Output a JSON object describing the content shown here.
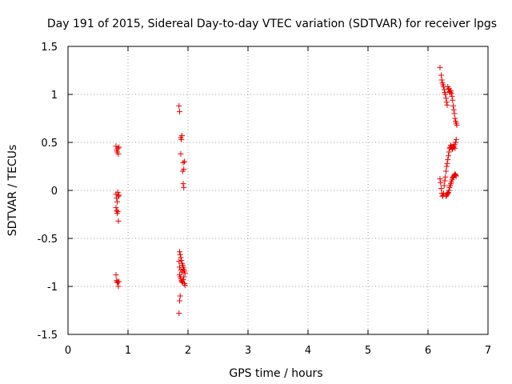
{
  "chart_data": {
    "type": "scatter",
    "title": "Day 191 of 2015, Sidereal Day-to-day VTEC variation (SDTVAR) for receiver lpgs",
    "xlabel": "GPS time / hours",
    "ylabel": "SDTVAR / TECUs",
    "xlim": [
      0,
      7
    ],
    "ylim": [
      -1.5,
      1.5
    ],
    "xticks": [
      0,
      1,
      2,
      3,
      4,
      5,
      6,
      7
    ],
    "yticks": [
      -1.5,
      -1,
      -0.5,
      0,
      0.5,
      1,
      1.5
    ],
    "xtick_labels": [
      "0",
      "1",
      "2",
      "3",
      "4",
      "5",
      "6",
      "7"
    ],
    "ytick_labels": [
      "-1.5",
      "-1",
      "-0.5",
      "0",
      "0.5",
      "1",
      "1.5"
    ],
    "grid": true,
    "marker": "+",
    "color": "#ee0000",
    "series": [
      {
        "name": "SDTVAR",
        "points": [
          [
            0.8,
            0.46
          ],
          [
            0.81,
            0.42
          ],
          [
            0.82,
            0.4
          ],
          [
            0.83,
            0.44
          ],
          [
            0.84,
            0.38
          ],
          [
            0.85,
            0.45
          ],
          [
            0.8,
            -0.04
          ],
          [
            0.81,
            -0.08
          ],
          [
            0.82,
            -0.12
          ],
          [
            0.83,
            -0.02
          ],
          [
            0.84,
            -0.06
          ],
          [
            0.85,
            -0.05
          ],
          [
            0.8,
            -0.18
          ],
          [
            0.81,
            -0.21
          ],
          [
            0.82,
            -0.24
          ],
          [
            0.83,
            -0.22
          ],
          [
            0.84,
            -0.32
          ],
          [
            0.8,
            -0.88
          ],
          [
            0.81,
            -0.94
          ],
          [
            0.82,
            -0.96
          ],
          [
            0.83,
            -0.95
          ],
          [
            0.84,
            -1.0
          ],
          [
            0.85,
            -0.95
          ],
          [
            1.85,
            0.88
          ],
          [
            1.86,
            0.82
          ],
          [
            1.88,
            0.55
          ],
          [
            1.89,
            0.53
          ],
          [
            1.9,
            0.57
          ],
          [
            1.88,
            0.38
          ],
          [
            1.92,
            0.29
          ],
          [
            1.93,
            0.22
          ],
          [
            1.91,
            0.2
          ],
          [
            1.94,
            0.3
          ],
          [
            1.92,
            0.07
          ],
          [
            1.93,
            0.03
          ],
          [
            1.86,
            -0.64
          ],
          [
            1.87,
            -0.67
          ],
          [
            1.88,
            -0.7
          ],
          [
            1.89,
            -0.73
          ],
          [
            1.9,
            -0.76
          ],
          [
            1.91,
            -0.78
          ],
          [
            1.92,
            -0.8
          ],
          [
            1.93,
            -0.82
          ],
          [
            1.94,
            -0.84
          ],
          [
            1.95,
            -0.86
          ],
          [
            1.86,
            -0.88
          ],
          [
            1.87,
            -0.9
          ],
          [
            1.88,
            -0.92
          ],
          [
            1.89,
            -0.94
          ],
          [
            1.9,
            -0.95
          ],
          [
            1.91,
            -0.96
          ],
          [
            1.92,
            -0.93
          ],
          [
            1.93,
            -0.9
          ],
          [
            1.94,
            -0.97
          ],
          [
            1.95,
            -0.99
          ],
          [
            1.85,
            -0.74
          ],
          [
            1.86,
            -0.8
          ],
          [
            1.88,
            -0.83
          ],
          [
            1.9,
            -0.85
          ],
          [
            1.87,
            -1.1
          ],
          [
            1.86,
            -1.15
          ],
          [
            1.85,
            -1.28
          ],
          [
            6.2,
            1.28
          ],
          [
            6.22,
            1.2
          ],
          [
            6.23,
            1.15
          ],
          [
            6.24,
            1.12
          ],
          [
            6.25,
            1.1
          ],
          [
            6.26,
            1.08
          ],
          [
            6.27,
            1.05
          ],
          [
            6.28,
            1.02
          ],
          [
            6.29,
            1.0
          ],
          [
            6.3,
            0.96
          ],
          [
            6.31,
            0.92
          ],
          [
            6.32,
            0.89
          ],
          [
            6.33,
            1.08
          ],
          [
            6.34,
            1.05
          ],
          [
            6.35,
            1.06
          ],
          [
            6.36,
            1.03
          ],
          [
            6.37,
            1.02
          ],
          [
            6.38,
            1.04
          ],
          [
            6.39,
            1.01
          ],
          [
            6.4,
            0.98
          ],
          [
            6.41,
            0.94
          ],
          [
            6.42,
            0.88
          ],
          [
            6.43,
            0.84
          ],
          [
            6.44,
            0.8
          ],
          [
            6.45,
            0.75
          ],
          [
            6.46,
            0.72
          ],
          [
            6.47,
            0.7
          ],
          [
            6.48,
            0.68
          ],
          [
            6.2,
            0.12
          ],
          [
            6.21,
            0.08
          ],
          [
            6.22,
            0.02
          ],
          [
            6.23,
            -0.03
          ],
          [
            6.24,
            -0.06
          ],
          [
            6.25,
            -0.05
          ],
          [
            6.26,
            -0.03
          ],
          [
            6.27,
            0.05
          ],
          [
            6.28,
            0.1
          ],
          [
            6.29,
            0.14
          ],
          [
            6.3,
            0.2
          ],
          [
            6.31,
            0.25
          ],
          [
            6.32,
            0.28
          ],
          [
            6.33,
            0.32
          ],
          [
            6.34,
            0.36
          ],
          [
            6.35,
            0.4
          ],
          [
            6.36,
            0.44
          ],
          [
            6.37,
            0.45
          ],
          [
            6.38,
            0.47
          ],
          [
            6.39,
            0.45
          ],
          [
            6.4,
            0.44
          ],
          [
            6.41,
            0.43
          ],
          [
            6.42,
            0.45
          ],
          [
            6.43,
            0.46
          ],
          [
            6.44,
            0.48
          ],
          [
            6.45,
            0.44
          ],
          [
            6.46,
            0.5
          ],
          [
            6.47,
            0.53
          ],
          [
            6.3,
            -0.06
          ],
          [
            6.31,
            -0.05
          ],
          [
            6.32,
            -0.04
          ],
          [
            6.33,
            -0.03
          ],
          [
            6.34,
            -0.02
          ],
          [
            6.35,
            0.0
          ],
          [
            6.36,
            0.03
          ],
          [
            6.37,
            0.05
          ],
          [
            6.38,
            0.07
          ],
          [
            6.39,
            0.09
          ],
          [
            6.4,
            0.11
          ],
          [
            6.41,
            0.13
          ],
          [
            6.42,
            0.14
          ],
          [
            6.43,
            0.15
          ],
          [
            6.44,
            0.16
          ],
          [
            6.45,
            0.17
          ],
          [
            6.46,
            0.16
          ],
          [
            6.47,
            0.15
          ]
        ]
      }
    ]
  }
}
